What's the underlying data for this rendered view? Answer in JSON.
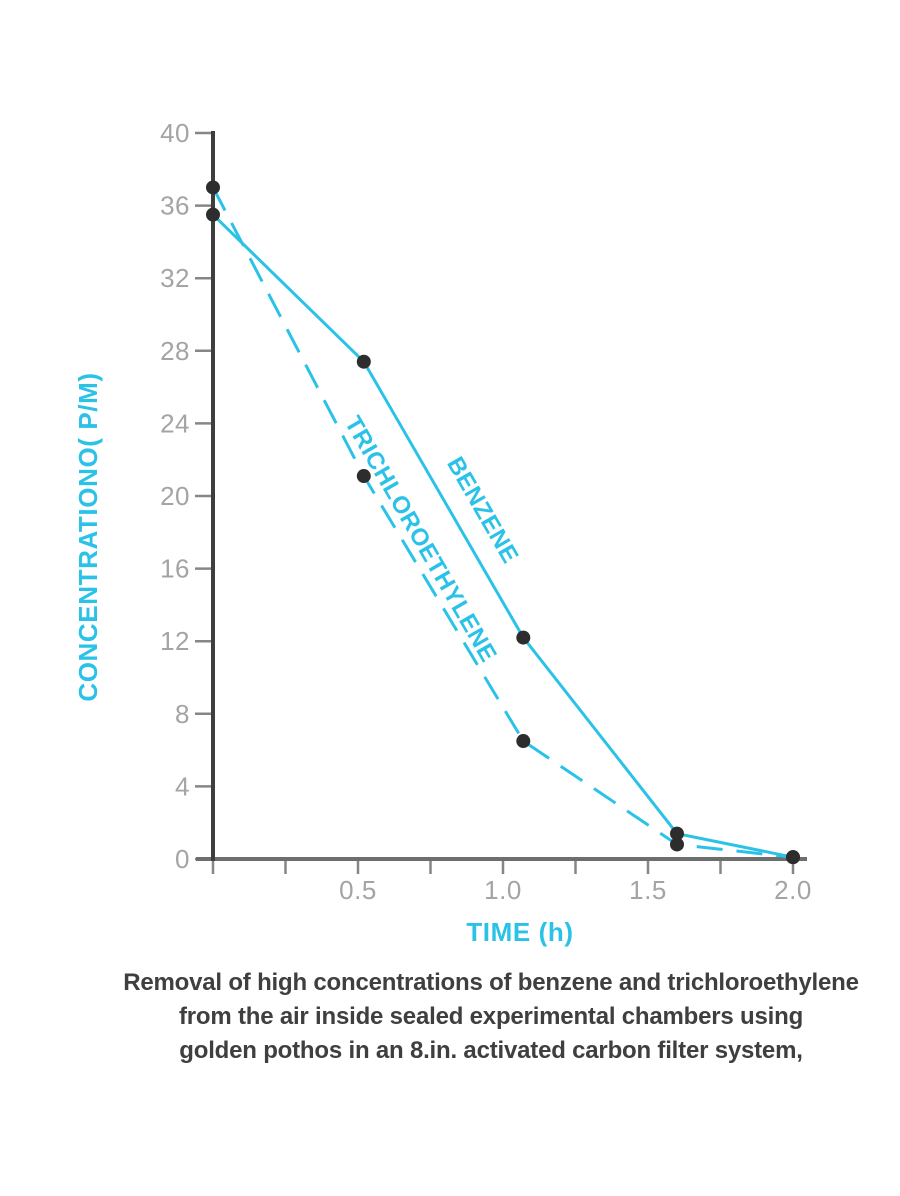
{
  "figure": {
    "background": "#ffffff",
    "accent_cyan": "#2bc2e8",
    "y_axis_color": "#3e3e3e",
    "x_axis_color": "#6e6e6e",
    "tick_color": "#868686",
    "tick_label_color": "#a4a4a4",
    "point_color": "#2d2d2d",
    "caption_color": "#3f3f3f"
  },
  "chart_data": {
    "type": "line",
    "title": "",
    "xlabel": "TIME (h)",
    "ylabel": "CONCENTRATIONO( P/M)",
    "xlim": [
      0,
      2.0
    ],
    "ylim": [
      0,
      40
    ],
    "grid": false,
    "legend": "rotated labels along lines",
    "y_ticks": [
      0,
      4,
      8,
      12,
      16,
      20,
      24,
      28,
      32,
      36,
      40
    ],
    "x_minor_tick_step": 0.25,
    "x_major_ticks": [
      0.5,
      1.0,
      1.5,
      2.0
    ],
    "x_major_tick_labels": [
      "0.5",
      "1.0",
      "1.5",
      "2.0"
    ],
    "x": [
      0,
      0.52,
      1.07,
      1.6,
      2.0
    ],
    "series": [
      {
        "name": "BENZENE",
        "style": "solid",
        "values": [
          35.5,
          27.4,
          12.2,
          1.4,
          0.1
        ]
      },
      {
        "name": "TRICHLOROETHYLENE",
        "style": "dashed",
        "values": [
          37,
          21.1,
          6.5,
          0.8,
          0.1
        ]
      }
    ]
  },
  "caption": {
    "lines": [
      "Removal of high concentrations of benzene and trichloroethylene",
      "from the air inside sealed experimental chambers using",
      "golden pothos in an 8.in. activated carbon filter system,"
    ]
  }
}
